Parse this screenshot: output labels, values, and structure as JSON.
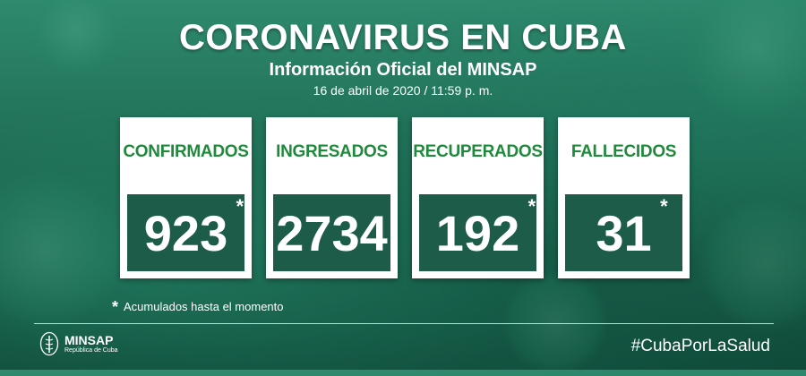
{
  "header": {
    "title": "CORONAVIRUS EN CUBA",
    "subtitle": "Información Oficial del MINSAP",
    "date": "16 de abril de 2020 / 11:59 p. m."
  },
  "stats": [
    {
      "label": "CONFIRMADOS",
      "value": "923",
      "marker": "*"
    },
    {
      "label": "INGRESADOS",
      "value": "2734",
      "marker": ""
    },
    {
      "label": "RECUPERADOS",
      "value": "192",
      "marker": "*"
    },
    {
      "label": "FALLECIDOS",
      "value": "31",
      "marker": "*"
    }
  ],
  "footnote": {
    "marker": "*",
    "text": "Acumulados hasta el momento"
  },
  "footer": {
    "logo_name": "MINSAP",
    "logo_sub": "República de Cuba",
    "hashtag": "#CubaPorLaSalud"
  },
  "colors": {
    "label_green": "#1f8a3c",
    "value_box": "#1d5c49",
    "background": "#1d6a52"
  }
}
